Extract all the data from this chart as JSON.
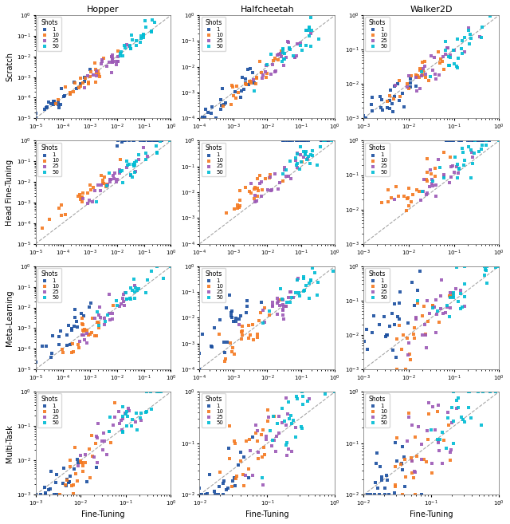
{
  "row_labels": [
    "Scratch",
    "Head Fine-Tuning",
    "Meta-Learning",
    "Multi-Task"
  ],
  "col_labels": [
    "Hopper",
    "Halfcheetah",
    "Walker2D"
  ],
  "xlabel": "Fine-Tuning",
  "shot_colors": {
    "1": "#1a4fa0",
    "10": "#f47920",
    "25": "#9b59b6",
    "50": "#00bcd4"
  },
  "shot_labels": [
    "1",
    "10",
    "25",
    "50"
  ],
  "figsize": [
    6.4,
    6.57
  ],
  "dpi": 100,
  "axis_ranges": {
    "Hopper": {
      "Scratch": {
        "xlim": [
          1e-05,
          1.0
        ],
        "ylim": [
          1e-05,
          1.0
        ]
      },
      "Head Fine-Tuning": {
        "xlim": [
          1e-05,
          1.0
        ],
        "ylim": [
          1e-05,
          1.0
        ]
      },
      "Meta-Learning": {
        "xlim": [
          1e-05,
          1.0
        ],
        "ylim": [
          1e-05,
          1.0
        ]
      },
      "Multi-Task": {
        "xlim": [
          0.001,
          1.0
        ],
        "ylim": [
          0.001,
          1.0
        ]
      }
    },
    "Halfcheetah": {
      "Scratch": {
        "xlim": [
          0.0001,
          1.0
        ],
        "ylim": [
          0.0001,
          1.0
        ]
      },
      "Head Fine-Tuning": {
        "xlim": [
          0.0001,
          1.0
        ],
        "ylim": [
          0.0001,
          1.0
        ]
      },
      "Meta-Learning": {
        "xlim": [
          0.0001,
          1.0
        ],
        "ylim": [
          0.0001,
          1.0
        ]
      },
      "Multi-Task": {
        "xlim": [
          0.01,
          1.0
        ],
        "ylim": [
          0.01,
          1.0
        ]
      }
    },
    "Walker2D": {
      "Scratch": {
        "xlim": [
          0.001,
          1.0
        ],
        "ylim": [
          0.001,
          1.0
        ]
      },
      "Head Fine-Tuning": {
        "xlim": [
          0.001,
          1.0
        ],
        "ylim": [
          0.001,
          1.0
        ]
      },
      "Meta-Learning": {
        "xlim": [
          0.001,
          1.0
        ],
        "ylim": [
          0.001,
          1.0
        ]
      },
      "Multi-Task": {
        "xlim": [
          0.01,
          1.0
        ],
        "ylim": [
          0.01,
          1.0
        ]
      }
    }
  },
  "n_points_per_shot": 25
}
